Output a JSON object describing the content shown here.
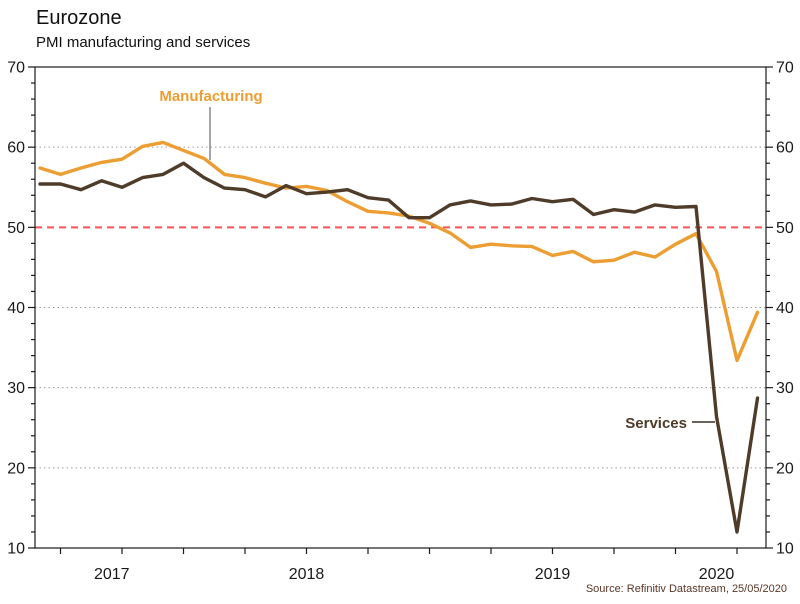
{
  "header": {
    "title": "Eurozone",
    "subtitle": "PMI manufacturing and services"
  },
  "source_note": "Source: Refinitiv Datastream, 25/05/2020",
  "chart_data": {
    "type": "line",
    "x_start": "2017-06",
    "x_end": "2020-05",
    "x_unit": "month",
    "x_year_labels": [
      "2017",
      "2018",
      "2019",
      "2020"
    ],
    "x_tick_months": [
      1,
      4,
      7,
      10
    ],
    "y_axis": {
      "min": 10,
      "max": 70,
      "major_step": 10,
      "minor_step": 2,
      "tick_labels": [
        "10",
        "20",
        "30",
        "40",
        "50",
        "60",
        "70"
      ],
      "sides": "both"
    },
    "gridlines": {
      "values": [
        20,
        30,
        40,
        60
      ],
      "style": "dotted",
      "color": "#9b9b9b"
    },
    "reference_line": {
      "value": 50,
      "style": "dashed",
      "color": "#f95252"
    },
    "axis_color": "#1a1a1a",
    "series": [
      {
        "name": "Manufacturing",
        "color": "#ec9e33",
        "values": [
          57.4,
          56.6,
          57.4,
          58.1,
          58.5,
          60.1,
          60.6,
          59.6,
          58.6,
          56.6,
          56.2,
          55.5,
          54.9,
          55.1,
          54.6,
          53.2,
          52.0,
          51.8,
          51.4,
          50.5,
          49.3,
          47.5,
          47.9,
          47.7,
          47.6,
          46.5,
          47.0,
          45.7,
          45.9,
          46.9,
          46.3,
          47.9,
          49.2,
          44.5,
          33.4,
          39.4
        ]
      },
      {
        "name": "Services",
        "color": "#4e3b29",
        "values": [
          55.4,
          55.4,
          54.7,
          55.8,
          55.0,
          56.2,
          56.6,
          58.0,
          56.2,
          54.9,
          54.7,
          53.8,
          55.2,
          54.2,
          54.4,
          54.7,
          53.7,
          53.4,
          51.2,
          51.2,
          52.8,
          53.3,
          52.8,
          52.9,
          53.6,
          53.2,
          53.5,
          51.6,
          52.2,
          51.9,
          52.8,
          52.5,
          52.6,
          26.4,
          12.0,
          28.7
        ]
      }
    ],
    "annotations": [
      {
        "text": "Manufacturing",
        "series": "Manufacturing",
        "color": "#ec9e33",
        "leader_color": "#808080"
      },
      {
        "text": "Services",
        "series": "Services",
        "color": "#4e3b29",
        "leader_color": "#3a2d20"
      }
    ]
  }
}
